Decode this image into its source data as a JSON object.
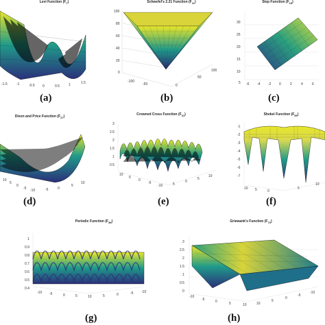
{
  "panels": {
    "a": {
      "label": "(a)",
      "title": "Levi Function (F",
      "sub": "7",
      "close": ")",
      "ticks_z": [],
      "ticks_x": [
        "-1.5",
        "-1",
        "-0.5",
        "0",
        "0.5",
        "1",
        "1.5"
      ]
    },
    "b": {
      "label": "(b)",
      "title": "Schwefel's 2.21 Function (F",
      "sub": "11",
      "close": ")",
      "ticks_z": [
        "100",
        "80",
        "60",
        "40",
        "20",
        "0"
      ],
      "ticks_x": [
        "-100",
        "-50",
        "0",
        "50",
        "100"
      ]
    },
    "c": {
      "label": "(c)",
      "title": "Step Function (F",
      "sub": "15",
      "close": ")",
      "ticks_z": [
        "30",
        "25",
        "20",
        "15",
        "10",
        "5"
      ],
      "ticks_x": [
        "-6",
        "-4",
        "-2",
        "0",
        "2",
        "4",
        "6"
      ]
    },
    "d": {
      "label": "(d)",
      "title": "Dixon and Price Function (F",
      "sub": "27",
      "close": ")",
      "ticks_z": [],
      "ticks_x": [
        "10",
        "5",
        "0",
        "-5",
        "-10",
        "-5",
        "0",
        "5",
        "10"
      ]
    },
    "e": {
      "label": "(e)",
      "title": "Crowned Cross Function (F",
      "sub": "31",
      "close": ")",
      "ticks_z": [
        "3",
        "2.5",
        "2",
        "1.5",
        "1",
        "0.5"
      ],
      "ticks_x": [
        "10",
        "5",
        "0",
        "-5",
        "-10",
        "5",
        "0",
        "5",
        "10"
      ]
    },
    "f": {
      "label": "(f)",
      "title": "Shekel Function (F",
      "sub": "55",
      "close": ")",
      "ticks_z": [
        "-1",
        "-2",
        "-3",
        "-4",
        "-5",
        "-6",
        "-7"
      ],
      "ticks_x": [
        "10",
        "5",
        "0",
        "5",
        "10"
      ]
    },
    "g": {
      "label": "(g)",
      "title": "Periodic Function (F",
      "sub": "58",
      "close": ")",
      "ticks_z": [
        "1",
        "0.9",
        "0.8",
        "0.7",
        "0.6",
        "0.5",
        "0.4"
      ],
      "ticks_x": [
        "-10",
        "-5",
        "0",
        "5",
        "10",
        "5",
        "0",
        "-5",
        "-10"
      ]
    },
    "h": {
      "label": "(h)",
      "title": "Griewank's Function (F",
      "sub": "73",
      "close": ")",
      "ticks_z": [
        "3",
        "2.5",
        "2",
        "1.5",
        "1",
        "0.5",
        "0"
      ],
      "ticks_x": [
        "-10",
        "-5",
        "0",
        "5",
        "10",
        "10",
        "5",
        "0",
        "-5",
        "-10"
      ]
    }
  },
  "colors": {
    "low": "#2b2f7a",
    "mid": "#1f9a8a",
    "high": "#e8e62a",
    "mesh": "#111111"
  }
}
